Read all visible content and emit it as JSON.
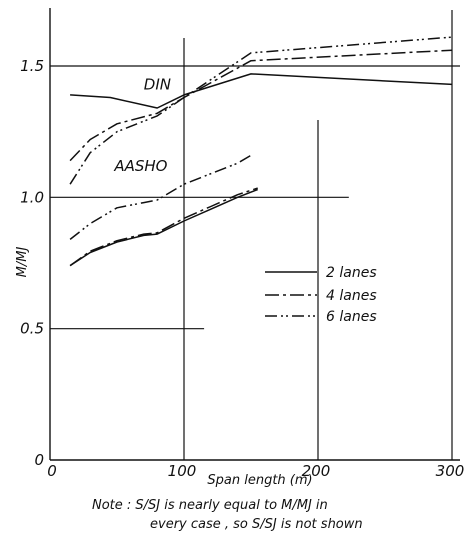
{
  "chart_data": {
    "type": "line",
    "title": "",
    "xlabel": "Span length (m)",
    "ylabel": "M/MJ",
    "xlim": [
      0,
      310
    ],
    "ylim": [
      0,
      1.72
    ],
    "x_ticks": [
      {
        "value": 0,
        "label": "0"
      },
      {
        "value": 100,
        "label": "100"
      },
      {
        "value": 200,
        "label": "200"
      },
      {
        "value": 300,
        "label": "300"
      }
    ],
    "y_ticks": [
      {
        "value": 0,
        "label": "0"
      },
      {
        "value": 0.5,
        "label": "0.5"
      },
      {
        "value": 1.0,
        "label": "1.0"
      },
      {
        "value": 1.5,
        "label": "1.5"
      }
    ],
    "grid": "partial",
    "legend": {
      "placement": "center-right",
      "entries": [
        {
          "label": "2 lanes",
          "style": "solid"
        },
        {
          "label": "4 lanes",
          "style": "dash-dot"
        },
        {
          "label": "6 lanes",
          "style": "dash-dot-dot"
        }
      ]
    },
    "annotations": [
      {
        "text": "DIN",
        "x": 70,
        "y": 1.41
      },
      {
        "text": "AASHO",
        "x": 48,
        "y": 1.1
      }
    ],
    "groups": [
      {
        "label": "DIN",
        "series": [
          {
            "name": "2 lanes",
            "style": "solid",
            "x": [
              15,
              45,
              80,
              100,
              150,
              300
            ],
            "y": [
              1.39,
              1.38,
              1.34,
              1.39,
              1.47,
              1.43
            ]
          },
          {
            "name": "4 lanes",
            "style": "dash-dot",
            "x": [
              15,
              30,
              50,
              80,
              100,
              150,
              300
            ],
            "y": [
              1.14,
              1.22,
              1.28,
              1.32,
              1.38,
              1.52,
              1.56
            ]
          },
          {
            "name": "6 lanes",
            "style": "dash-dot-dot",
            "x": [
              15,
              30,
              50,
              80,
              100,
              150,
              300
            ],
            "y": [
              1.05,
              1.17,
              1.25,
              1.31,
              1.38,
              1.55,
              1.61
            ]
          }
        ]
      },
      {
        "label": "AASHO",
        "series": [
          {
            "name": "2 lanes",
            "style": "solid",
            "x": [
              15,
              30,
              50,
              70,
              80,
              100,
              120,
              140,
              155
            ],
            "y": [
              0.74,
              0.79,
              0.83,
              0.855,
              0.86,
              0.91,
              0.955,
              1.0,
              1.03
            ]
          },
          {
            "name": "4 lanes",
            "style": "dash-dot",
            "x": [
              15,
              30,
              50,
              70,
              80,
              100,
              120,
              140,
              155
            ],
            "y": [
              0.74,
              0.795,
              0.835,
              0.86,
              0.865,
              0.92,
              0.965,
              1.01,
              1.035
            ]
          },
          {
            "name": "6 lanes",
            "style": "dash-dot-dot",
            "x": [
              15,
              30,
              50,
              70,
              80,
              100,
              120,
              140,
              150
            ],
            "y": [
              0.84,
              0.9,
              0.96,
              0.98,
              0.99,
              1.05,
              1.09,
              1.13,
              1.16
            ]
          }
        ]
      }
    ]
  },
  "note": {
    "line1": "Note : S/SJ is nearly equal to M/MJ in",
    "line2": "every case , so S/SJ is not shown"
  }
}
